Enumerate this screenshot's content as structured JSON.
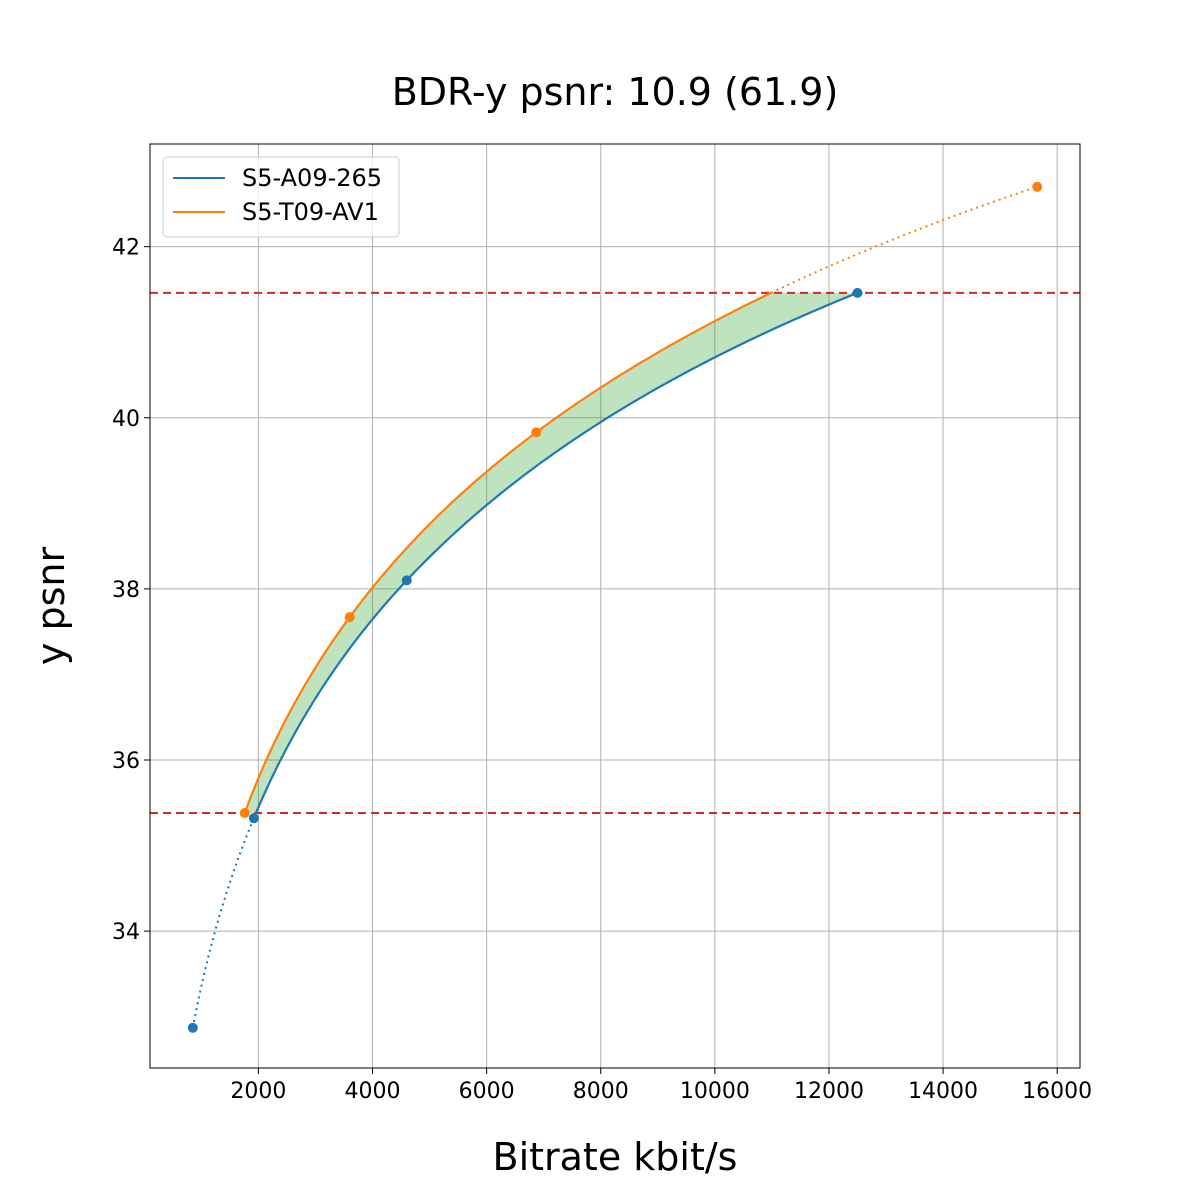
{
  "chart_data": {
    "type": "line",
    "title": "BDR-y psnr: 10.9 (61.9)",
    "xlabel": "Bitrate kbit/s",
    "ylabel": "y psnr",
    "xlim": [
      100,
      16400
    ],
    "ylim": [
      32.4,
      43.2
    ],
    "xticks": [
      2000,
      4000,
      6000,
      8000,
      10000,
      12000,
      14000,
      16000
    ],
    "yticks": [
      34,
      36,
      38,
      40,
      42
    ],
    "grid": true,
    "legend_position": "top-left",
    "colors": {
      "series1": "#1f77b4",
      "series2": "#ff7f0e",
      "fill": "#2ca02c",
      "threshold": "#d62728"
    },
    "thresholds": [
      41.46,
      35.38
    ],
    "series": [
      {
        "name": "S5-A09-265",
        "x": [
          850,
          1920,
          4600,
          12500
        ],
        "y": [
          32.87,
          35.32,
          38.1,
          41.46
        ]
      },
      {
        "name": "S5-T09-AV1",
        "x": [
          1760,
          3600,
          6870,
          15650
        ],
        "y": [
          35.38,
          37.67,
          39.83,
          42.7
        ]
      }
    ]
  }
}
